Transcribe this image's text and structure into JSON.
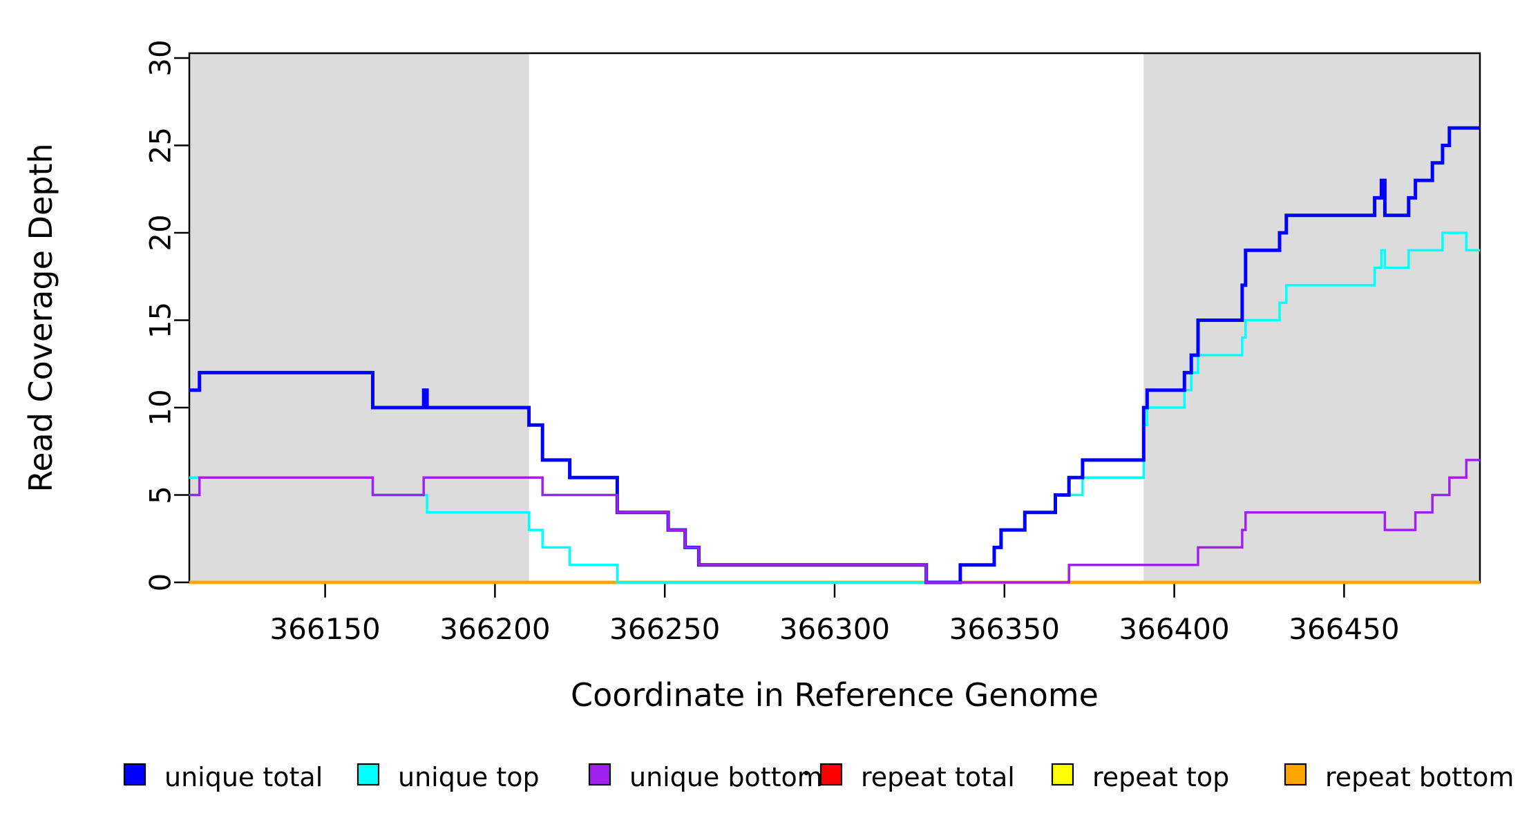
{
  "figure": {
    "y_axis_label": "Read Coverage Depth",
    "x_axis_label": "Coordinate in Reference Genome"
  },
  "legend": {
    "items": [
      {
        "label": "unique total",
        "color": "#0000FF"
      },
      {
        "label": "unique top",
        "color": "#00FFFF"
      },
      {
        "label": "unique bottom",
        "color": "#A020F0"
      },
      {
        "label": "repeat total",
        "color": "#FF0000"
      },
      {
        "label": "repeat top",
        "color": "#FFFF00"
      },
      {
        "label": "repeat bottom",
        "color": "#FFA500"
      }
    ]
  },
  "colors": {
    "shaded_region": "#DCDCDC",
    "frame": "#000000",
    "background": "#FFFFFF"
  },
  "chart_data": {
    "type": "line",
    "step": true,
    "title": "",
    "xlabel": "Coordinate in Reference Genome",
    "ylabel": "Read Coverage Depth",
    "xlim": [
      366110,
      366490
    ],
    "ylim": [
      0,
      30.3
    ],
    "grid": false,
    "legend_position": "bottom",
    "x_tick_values": [
      366150,
      366200,
      366250,
      366300,
      366350,
      366400,
      366450
    ],
    "x_tick_labels": [
      "366150",
      "366200",
      "366250",
      "366300",
      "366350",
      "366400",
      "366450"
    ],
    "y_tick_values": [
      0,
      5,
      10,
      15,
      20,
      25,
      30
    ],
    "y_tick_labels": [
      "0",
      "5",
      "10",
      "15",
      "20",
      "25",
      "30"
    ],
    "shaded_regions": [
      {
        "from": 366110,
        "to": 366210
      },
      {
        "from": 366391,
        "to": 366490
      }
    ],
    "series": [
      {
        "name": "repeat total",
        "color": "#FF0000",
        "width": 4.5,
        "points": [
          [
            366110,
            0
          ],
          [
            366490,
            0
          ]
        ]
      },
      {
        "name": "repeat top",
        "color": "#FFFF00",
        "width": 4.5,
        "points": [
          [
            366110,
            0
          ],
          [
            366490,
            0
          ]
        ]
      },
      {
        "name": "repeat bottom",
        "color": "#FFA500",
        "width": 4.5,
        "points": [
          [
            366110,
            0
          ],
          [
            366490,
            0
          ]
        ]
      },
      {
        "name": "unique top",
        "color": "#00FFFF",
        "width": 3.5,
        "points": [
          [
            366110,
            6
          ],
          [
            366164,
            5
          ],
          [
            366180,
            4
          ],
          [
            366210,
            3
          ],
          [
            366214,
            2
          ],
          [
            366222,
            1
          ],
          [
            366236,
            0
          ],
          [
            366337,
            1
          ],
          [
            366347,
            2
          ],
          [
            366349,
            3
          ],
          [
            366356,
            4
          ],
          [
            366365,
            5
          ],
          [
            366373,
            6
          ],
          [
            366391,
            9
          ],
          [
            366392,
            10
          ],
          [
            366403,
            11
          ],
          [
            366405,
            12
          ],
          [
            366407,
            13
          ],
          [
            366420,
            14
          ],
          [
            366421,
            15
          ],
          [
            366431,
            16
          ],
          [
            366433,
            17
          ],
          [
            366459,
            18
          ],
          [
            366461,
            19
          ],
          [
            366462,
            18
          ],
          [
            366469,
            19
          ],
          [
            366479,
            20
          ],
          [
            366486,
            19
          ],
          [
            366490,
            19
          ]
        ]
      },
      {
        "name": "unique total",
        "color": "#0000FF",
        "width": 5,
        "points": [
          [
            366110,
            11
          ],
          [
            366113,
            12
          ],
          [
            366164,
            10
          ],
          [
            366179,
            11
          ],
          [
            366180,
            10
          ],
          [
            366210,
            9
          ],
          [
            366214,
            7
          ],
          [
            366222,
            6
          ],
          [
            366236,
            4
          ],
          [
            366251,
            3
          ],
          [
            366256,
            2
          ],
          [
            366260,
            1
          ],
          [
            366327,
            0
          ],
          [
            366337,
            1
          ],
          [
            366347,
            2
          ],
          [
            366349,
            3
          ],
          [
            366356,
            4
          ],
          [
            366365,
            5
          ],
          [
            366369,
            6
          ],
          [
            366373,
            7
          ],
          [
            366391,
            10
          ],
          [
            366392,
            11
          ],
          [
            366403,
            12
          ],
          [
            366405,
            13
          ],
          [
            366407,
            15
          ],
          [
            366420,
            17
          ],
          [
            366421,
            19
          ],
          [
            366431,
            20
          ],
          [
            366433,
            21
          ],
          [
            366459,
            22
          ],
          [
            366461,
            23
          ],
          [
            366462,
            21
          ],
          [
            366469,
            22
          ],
          [
            366471,
            23
          ],
          [
            366476,
            24
          ],
          [
            366479,
            25
          ],
          [
            366481,
            26
          ],
          [
            366490,
            26
          ]
        ]
      },
      {
        "name": "unique bottom",
        "color": "#A020F0",
        "width": 3.5,
        "points": [
          [
            366110,
            5
          ],
          [
            366113,
            6
          ],
          [
            366164,
            5
          ],
          [
            366179,
            6
          ],
          [
            366214,
            5
          ],
          [
            366236,
            4
          ],
          [
            366251,
            3
          ],
          [
            366256,
            2
          ],
          [
            366260,
            1
          ],
          [
            366327,
            0
          ],
          [
            366369,
            1
          ],
          [
            366407,
            2
          ],
          [
            366420,
            3
          ],
          [
            366421,
            4
          ],
          [
            366462,
            3
          ],
          [
            366471,
            4
          ],
          [
            366476,
            5
          ],
          [
            366481,
            6
          ],
          [
            366486,
            7
          ],
          [
            366490,
            7
          ]
        ]
      }
    ]
  }
}
